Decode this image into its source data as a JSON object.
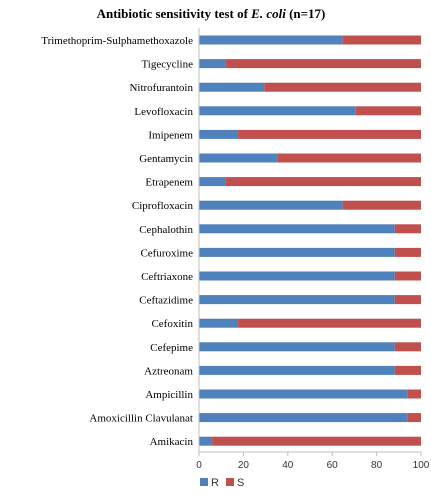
{
  "chart_data": {
    "type": "bar",
    "orientation": "horizontal",
    "stacked": true,
    "title_prefix": "Antibiotic sensitivity test of ",
    "title_italic": "E. coli",
    "title_suffix": " (n=17)",
    "categories": [
      "Trimethoprim-Sulphamethoxazole",
      "Tigecycline",
      "Nitrofurantoin",
      "Levofloxacin",
      "Imipenem",
      "Gentamycin",
      "Etrapenem",
      "Ciprofloxacin",
      "Cephalothin",
      "Cefuroxime",
      "Ceftriaxone",
      "Ceftazidime",
      "Cefoxitin",
      "Cefepime",
      "Aztreonam",
      "Ampicillin",
      "Amoxicillin Clavulanat",
      "Amikacin"
    ],
    "series": [
      {
        "name": "R",
        "color": "#4f81bd",
        "values": [
          64.7,
          11.8,
          29.4,
          70.6,
          17.6,
          35.3,
          11.8,
          64.7,
          88.2,
          88.2,
          88.2,
          88.2,
          17.6,
          88.2,
          88.2,
          94.1,
          94.1,
          5.9
        ]
      },
      {
        "name": "S",
        "color": "#c0504d",
        "values": [
          35.3,
          88.2,
          70.6,
          29.4,
          82.4,
          64.7,
          88.2,
          35.3,
          11.8,
          11.8,
          11.8,
          11.8,
          82.4,
          11.8,
          11.8,
          5.9,
          5.9,
          94.1
        ]
      }
    ],
    "xlim": [
      0,
      100
    ],
    "xticks": [
      "0",
      "20",
      "40",
      "60",
      "80",
      "100"
    ],
    "legend_position": "bottom",
    "grid": false
  }
}
